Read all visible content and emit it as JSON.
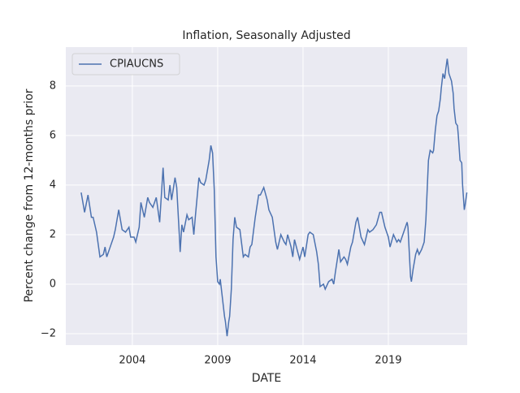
{
  "chart_data": {
    "type": "line",
    "title": "Inflation, Seasonally Adjusted",
    "xlabel": "DATE",
    "ylabel": "Percent change from 12-months prior",
    "x": [
      2001.0,
      2001.2,
      2001.4,
      2001.6,
      2001.7,
      2001.9,
      2002.0,
      2002.1,
      2002.3,
      2002.4,
      2002.5,
      2002.7,
      2002.9,
      2003.0,
      2003.1,
      2003.2,
      2003.4,
      2003.6,
      2003.8,
      2003.9,
      2004.1,
      2004.2,
      2004.4,
      2004.5,
      2004.7,
      2004.9,
      2005.0,
      2005.2,
      2005.4,
      2005.6,
      2005.7,
      2005.8,
      2005.9,
      2006.1,
      2006.2,
      2006.3,
      2006.5,
      2006.6,
      2006.75,
      2006.8,
      2006.9,
      2007.0,
      2007.2,
      2007.3,
      2007.5,
      2007.6,
      2007.7,
      2007.9,
      2008.0,
      2008.2,
      2008.3,
      2008.5,
      2008.6,
      2008.7,
      2008.8,
      2008.9,
      2009.0,
      2009.1,
      2009.15,
      2009.25,
      2009.4,
      2009.45,
      2009.55,
      2009.65,
      2009.7,
      2009.8,
      2009.9,
      2010.0,
      2010.1,
      2010.3,
      2010.5,
      2010.6,
      2010.8,
      2010.9,
      2011.0,
      2011.2,
      2011.4,
      2011.5,
      2011.7,
      2011.9,
      2012.0,
      2012.2,
      2012.4,
      2012.5,
      2012.7,
      2012.9,
      2013.0,
      2013.1,
      2013.3,
      2013.4,
      2013.5,
      2013.8,
      2014.0,
      2014.1,
      2014.3,
      2014.4,
      2014.6,
      2014.8,
      2014.9,
      2015.0,
      2015.2,
      2015.3,
      2015.5,
      2015.7,
      2015.8,
      2015.9,
      2016.1,
      2016.2,
      2016.4,
      2016.5,
      2016.6,
      2016.8,
      2016.9,
      2017.1,
      2017.2,
      2017.4,
      2017.6,
      2017.8,
      2017.9,
      2018.1,
      2018.3,
      2018.5,
      2018.6,
      2018.8,
      2019.0,
      2019.1,
      2019.3,
      2019.5,
      2019.6,
      2019.7,
      2019.9,
      2020.1,
      2020.15,
      2020.3,
      2020.35,
      2020.45,
      2020.6,
      2020.7,
      2020.8,
      2020.95,
      2021.1,
      2021.2,
      2021.3,
      2021.35,
      2021.45,
      2021.6,
      2021.65,
      2021.75,
      2021.85,
      2021.95,
      2022.05,
      2022.1,
      2022.2,
      2022.3,
      2022.35,
      2022.45,
      2022.55,
      2022.65,
      2022.7,
      2022.8,
      2022.85,
      2022.95,
      2023.05,
      2023.1,
      2023.2,
      2023.3,
      2023.35,
      2023.45,
      2023.5,
      2023.6
    ],
    "series": [
      {
        "name": "CPIAUCNS",
        "color": "#4c72b0",
        "values": [
          3.7,
          2.9,
          3.6,
          2.7,
          2.7,
          2.1,
          1.6,
          1.1,
          1.2,
          1.5,
          1.1,
          1.5,
          1.9,
          2.2,
          2.6,
          3.0,
          2.2,
          2.1,
          2.3,
          1.9,
          1.9,
          1.7,
          2.3,
          3.3,
          2.7,
          3.5,
          3.3,
          3.1,
          3.5,
          2.5,
          3.6,
          4.7,
          3.5,
          3.4,
          4.0,
          3.4,
          4.3,
          3.9,
          2.0,
          1.3,
          2.4,
          2.1,
          2.8,
          2.6,
          2.7,
          2.0,
          2.8,
          4.3,
          4.1,
          4.0,
          4.2,
          5.0,
          5.6,
          5.3,
          3.8,
          1.1,
          0.1,
          0.0,
          0.2,
          -0.4,
          -1.3,
          -1.5,
          -2.1,
          -1.5,
          -1.3,
          -0.2,
          1.8,
          2.7,
          2.3,
          2.2,
          1.1,
          1.2,
          1.1,
          1.5,
          1.6,
          2.7,
          3.6,
          3.6,
          3.9,
          3.4,
          3.0,
          2.7,
          1.7,
          1.4,
          2.0,
          1.7,
          1.6,
          2.0,
          1.5,
          1.1,
          1.8,
          1.0,
          1.5,
          1.1,
          2.0,
          2.1,
          2.0,
          1.3,
          0.8,
          -0.1,
          0.0,
          -0.2,
          0.1,
          0.2,
          0.0,
          0.5,
          1.4,
          0.9,
          1.1,
          1.0,
          0.8,
          1.5,
          1.7,
          2.5,
          2.7,
          1.9,
          1.6,
          2.2,
          2.1,
          2.2,
          2.4,
          2.9,
          2.9,
          2.3,
          1.9,
          1.5,
          2.0,
          1.7,
          1.8,
          1.7,
          2.1,
          2.5,
          2.3,
          0.3,
          0.1,
          0.6,
          1.2,
          1.4,
          1.2,
          1.4,
          1.7,
          2.6,
          4.2,
          5.0,
          5.4,
          5.3,
          5.4,
          6.2,
          6.8,
          7.0,
          7.5,
          7.9,
          8.5,
          8.3,
          8.6,
          9.1,
          8.5,
          8.3,
          8.2,
          7.7,
          7.1,
          6.5,
          6.4,
          6.0,
          5.0,
          4.9,
          4.0,
          3.0,
          3.2,
          3.7
        ]
      }
    ],
    "xlim": [
      2000.1,
      2023.62
    ],
    "xticks": [
      2004,
      2009,
      2014,
      2019
    ],
    "ylim": [
      -2.46,
      9.57
    ],
    "yticks": [
      {
        "value": -2,
        "label": "−2"
      },
      0,
      2,
      4,
      6,
      8
    ],
    "grid": true,
    "legend": "upper left"
  }
}
